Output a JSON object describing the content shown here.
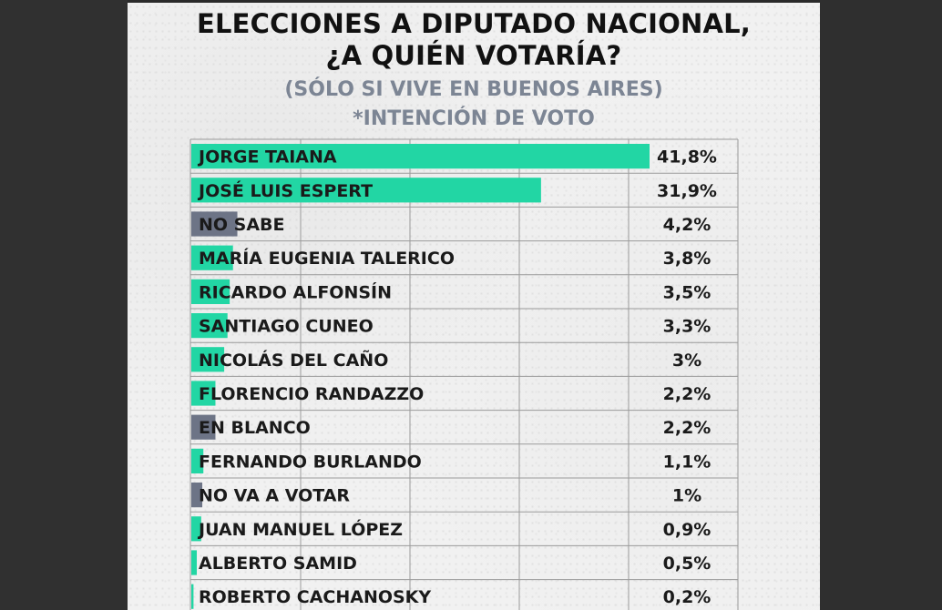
{
  "title_line1": "ELECCIONES A DIPUTADO NACIONAL,",
  "title_line2": "¿A QUIÉN VOTARÍA?",
  "subtitle_line1": "(SÓLO SI VIVE EN BUENOS AIRES)",
  "subtitle_line2": "*INTENCIÓN DE VOTO",
  "colors": {
    "candidate": "#22d6a4",
    "other": "#6d7486",
    "grid": "#9a9a9a",
    "text": "#1a1a1a"
  },
  "chart_data": {
    "type": "bar",
    "orientation": "horizontal",
    "categories": [
      "JORGE TAIANA",
      "JOSÉ LUIS ESPERT",
      "NO SABE",
      "MARÍA EUGENIA TALERICO",
      "RICARDO ALFONSÍN",
      "SANTIAGO CUNEO",
      "NICOLÁS DEL CAÑO",
      "FLORENCIO RANDAZZO",
      "EN BLANCO",
      "FERNANDO BURLANDO",
      "NO VA A VOTAR",
      "JUAN MANUEL LÓPEZ",
      "ALBERTO SAMID",
      "ROBERTO CACHANOSKY"
    ],
    "values": [
      41.8,
      31.9,
      4.2,
      3.8,
      3.5,
      3.3,
      3,
      2.2,
      2.2,
      1.1,
      1,
      0.9,
      0.5,
      0.2
    ],
    "value_labels": [
      "41,8%",
      "31,9%",
      "4,2%",
      "3,8%",
      "3,5%",
      "3,3%",
      "3%",
      "2,2%",
      "2,2%",
      "1,1%",
      "1%",
      "0,9%",
      "0,5%",
      "0,2%"
    ],
    "kinds": [
      "candidate",
      "candidate",
      "other",
      "candidate",
      "candidate",
      "candidate",
      "candidate",
      "candidate",
      "other",
      "candidate",
      "other",
      "candidate",
      "candidate",
      "candidate"
    ],
    "xlim": [
      0,
      50
    ],
    "grid": true
  }
}
